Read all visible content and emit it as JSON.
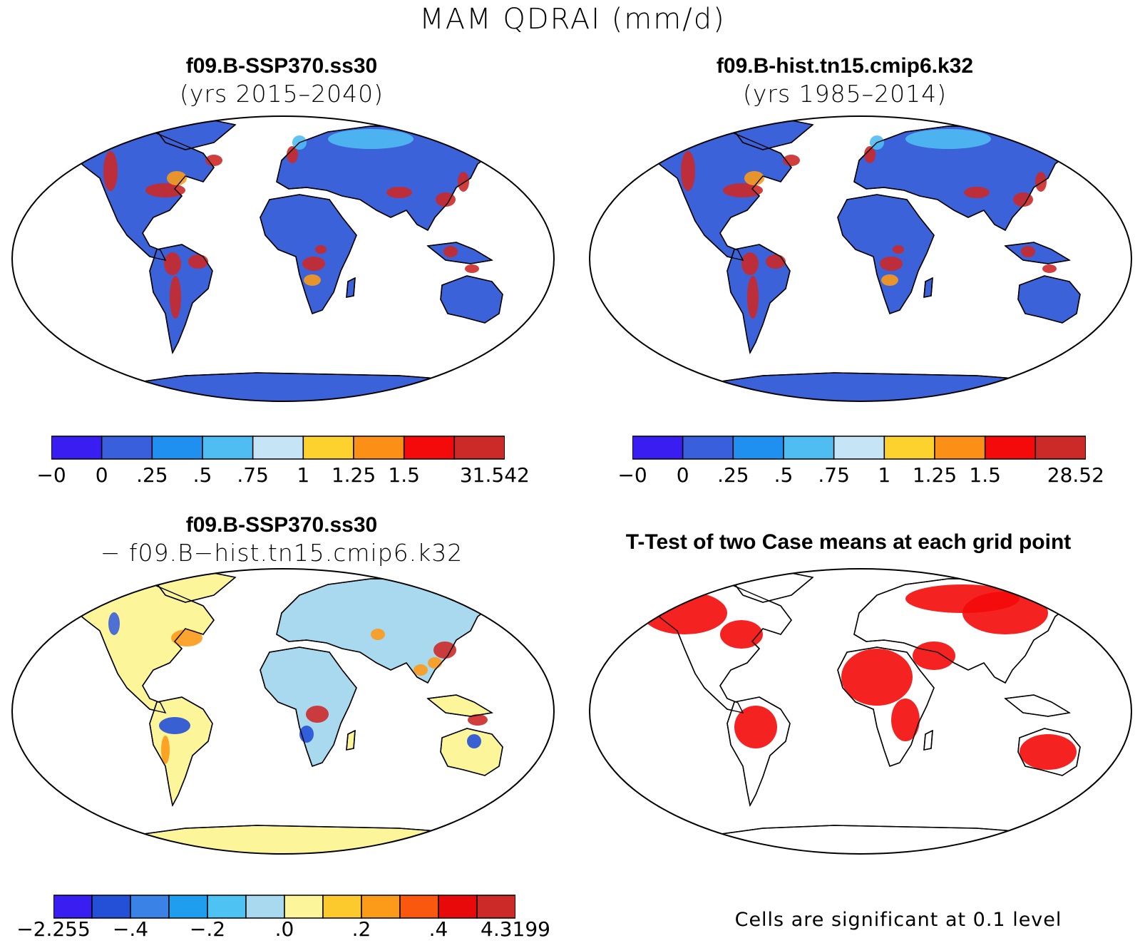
{
  "title": "MAM QDRAI (mm/d)",
  "panels": [
    {
      "id": "tl",
      "title": "f09.B-SSP370.ss30",
      "subtitle": "(yrs 2015–2040)",
      "colorbar": {
        "colors": [
          "#3a1df0",
          "#3a5fdc",
          "#1f8ff0",
          "#4fbdf2",
          "#c5e4f5",
          "#fdd22e",
          "#fc8f16",
          "#f40a0a",
          "#cc2929"
        ],
        "labels": [
          "−0",
          "0",
          ".25",
          ".5",
          ".75",
          "1",
          "1.25",
          "1.5",
          "31.542"
        ]
      }
    },
    {
      "id": "tr",
      "title": "f09.B-hist.tn15.cmip6.k32",
      "subtitle": "(yrs 1985–2014)",
      "colorbar": {
        "colors": [
          "#3a1df0",
          "#3a5fdc",
          "#1f8ff0",
          "#4fbdf2",
          "#c5e4f5",
          "#fdd22e",
          "#fc8f16",
          "#f40a0a",
          "#cc2929"
        ],
        "labels": [
          "−0",
          "0",
          ".25",
          ".5",
          ".75",
          "1",
          "1.25",
          "1.5",
          "28.52"
        ]
      }
    },
    {
      "id": "bl",
      "title": "f09.B-SSP370.ss30",
      "subtitle": "− f09.B−hist.tn15.cmip6.k32",
      "colorbar": {
        "colors": [
          "#3a1df0",
          "#2450d8",
          "#3b82e6",
          "#1f9ef0",
          "#4fc2f4",
          "#a9d9ef",
          "#fdf59a",
          "#fdca2e",
          "#fc9a1a",
          "#f9580e",
          "#e8090b",
          "#cc2929"
        ],
        "labels": [
          "−2.255",
          "−.4",
          "−.2",
          ".0",
          ".2",
          ".4",
          "4.3199"
        ]
      }
    },
    {
      "id": "br",
      "title": "T-Test of two Case means at each grid point",
      "note": "Cells are significant at 0.1 level"
    }
  ],
  "map_colors": {
    "base_blue": "#3b62d9",
    "light_blue": "#a9d9ef",
    "yellow": "#fdf59a",
    "orange": "#fc9a1a",
    "red": "#cc2929",
    "bright_red": "#f40a0a"
  }
}
